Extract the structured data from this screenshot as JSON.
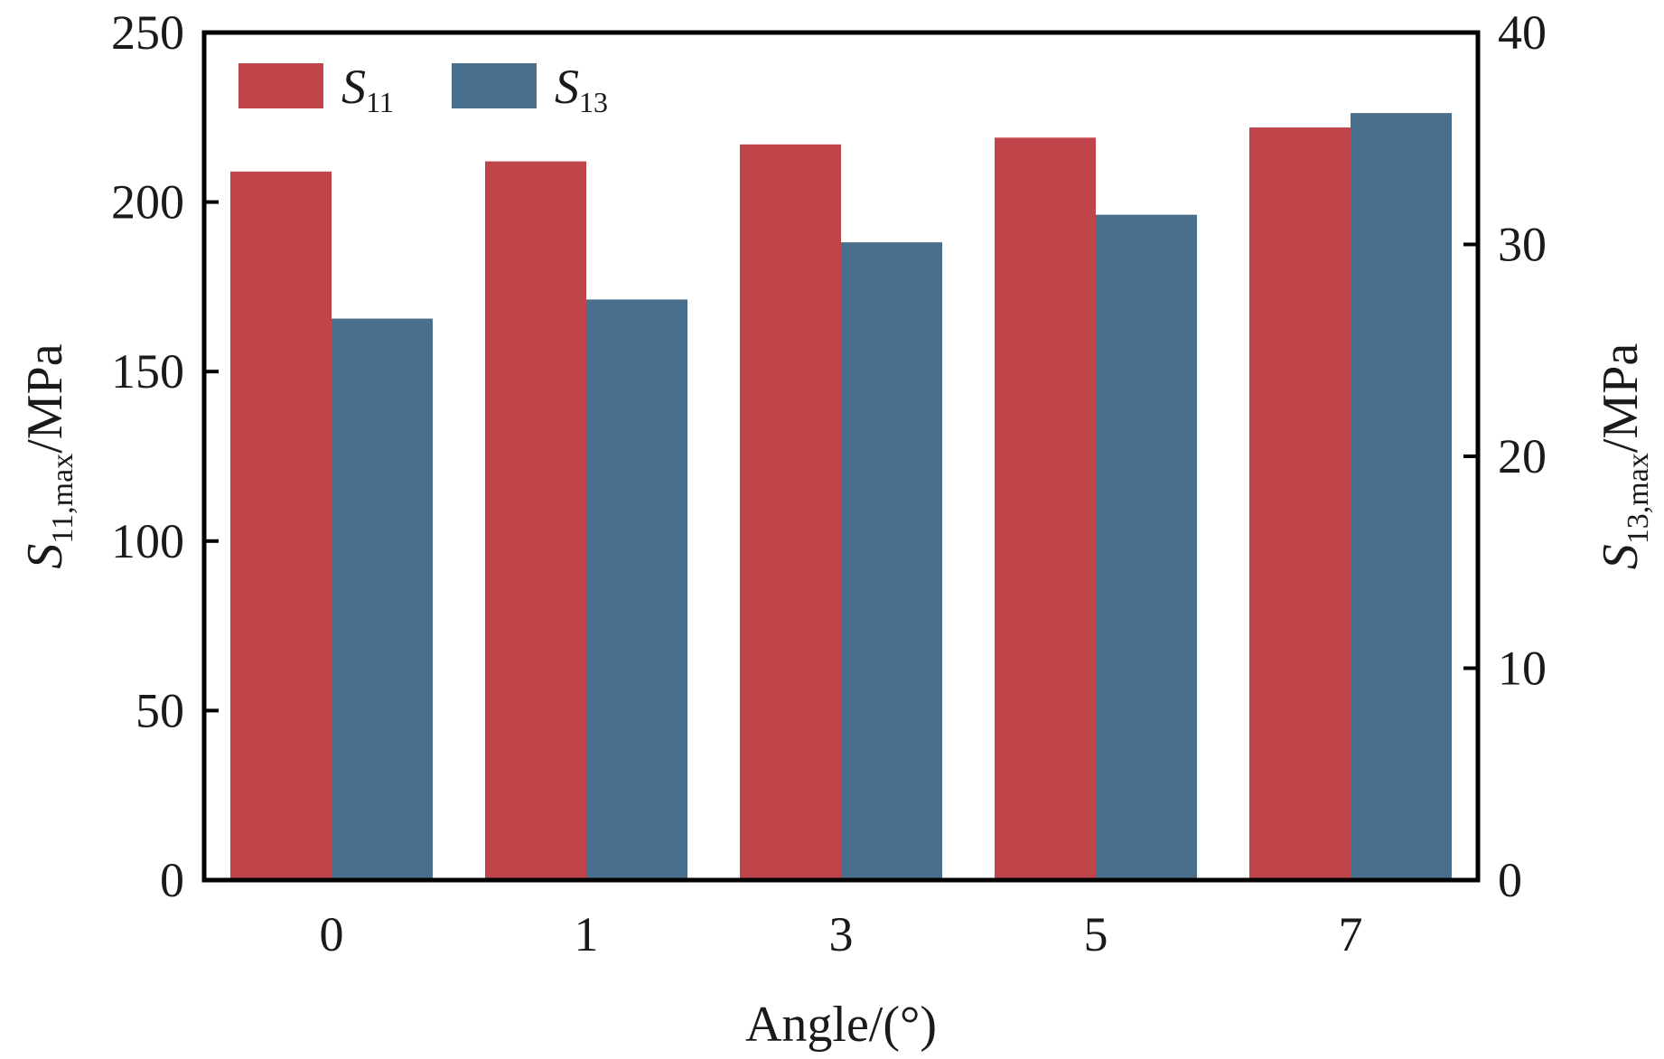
{
  "chart_data": {
    "type": "bar",
    "categories": [
      "0",
      "1",
      "3",
      "5",
      "7"
    ],
    "xlabel": "Angle/(°)",
    "ylabel_left": {
      "symbol": "S",
      "subscript": "11,max",
      "unit": "/MPa"
    },
    "ylabel_right": {
      "symbol": "S",
      "subscript": "13,max",
      "unit": "/MPa"
    },
    "ylim_left": [
      0,
      250
    ],
    "ylim_right": [
      0,
      40
    ],
    "yticks_left": [
      0,
      50,
      100,
      150,
      200,
      250
    ],
    "yticks_right": [
      0,
      10,
      20,
      30,
      40
    ],
    "grid": false,
    "legend_position": "top-left",
    "series": [
      {
        "name": "S11",
        "name_symbol": "S",
        "name_subscript": "11",
        "axis": "left",
        "color": "#c0454a",
        "values": [
          209,
          212,
          217,
          219,
          222
        ]
      },
      {
        "name": "S13",
        "name_symbol": "S",
        "name_subscript": "13",
        "axis": "right",
        "color": "#4a6f8d",
        "values": [
          26.5,
          27.4,
          30.1,
          31.4,
          36.2
        ]
      }
    ]
  }
}
